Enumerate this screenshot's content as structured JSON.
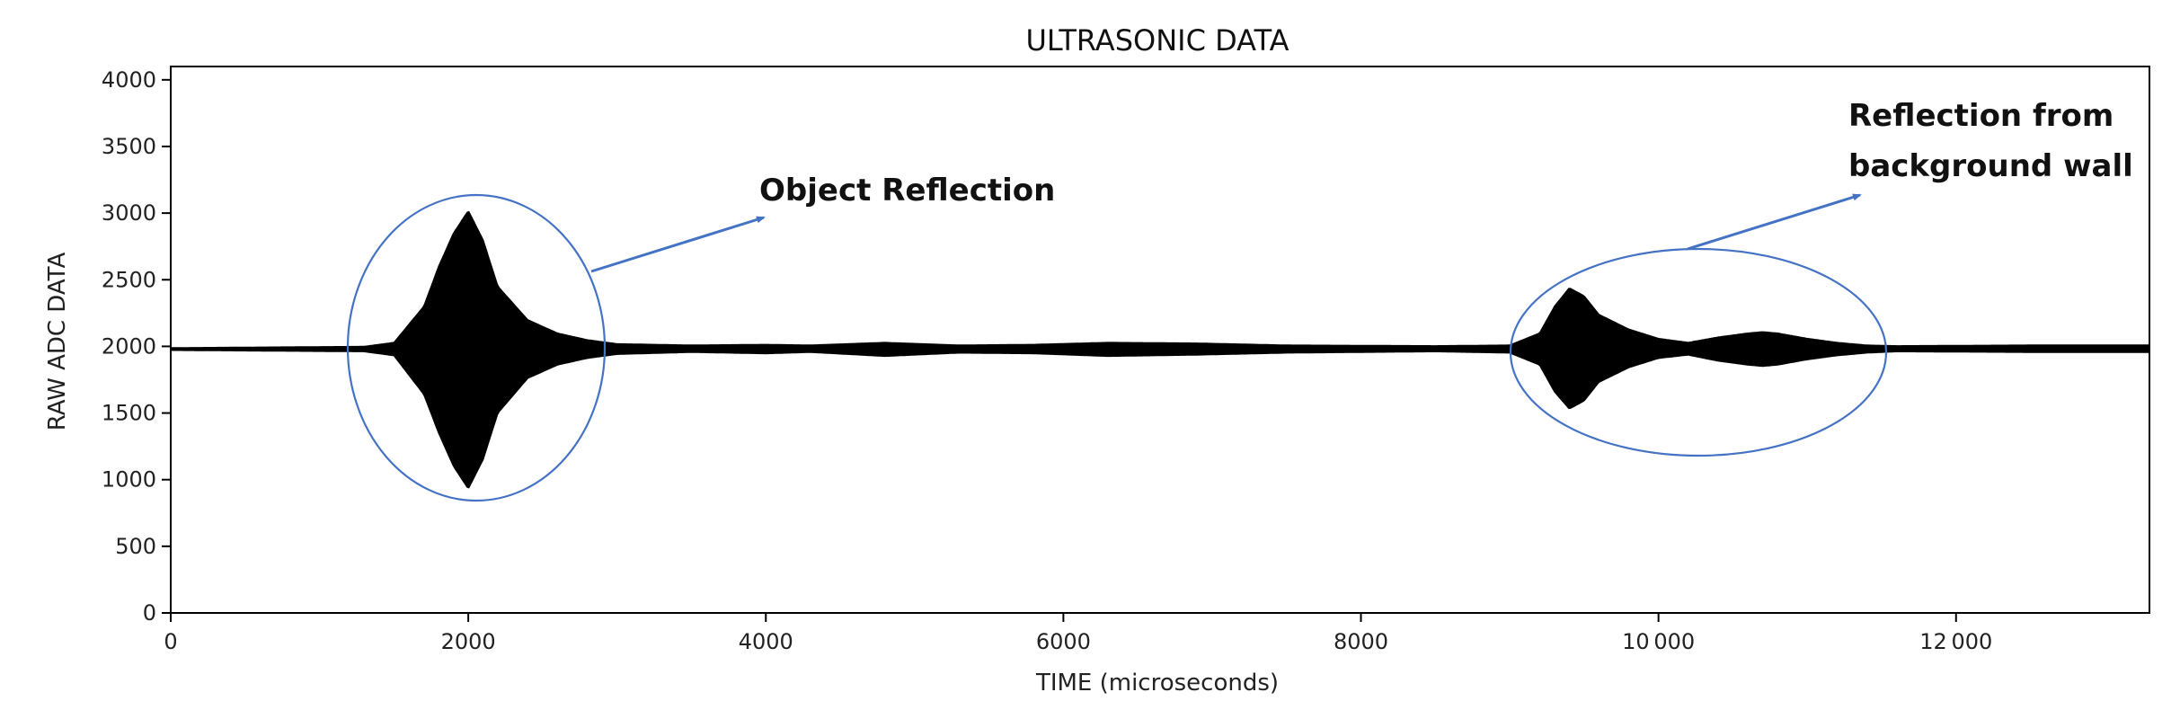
{
  "colors": {
    "signal": "#000000",
    "annotation": "#4472C4",
    "axis": "#000000"
  },
  "chart_data": {
    "type": "line",
    "title": "ULTRASONIC DATA",
    "xlabel": "TIME (microseconds)",
    "ylabel": "RAW ADC DATA",
    "xlim": [
      0,
      13300
    ],
    "ylim": [
      0,
      4100
    ],
    "x_ticks": [
      0,
      2000,
      4000,
      6000,
      8000,
      10000,
      12000
    ],
    "x_tick_labels": [
      "0",
      "2000",
      "4000",
      "6000",
      "8000",
      "10 000",
      "12 000"
    ],
    "y_ticks": [
      0,
      500,
      1000,
      1500,
      2000,
      2500,
      3000,
      3500,
      4000
    ],
    "y_tick_labels": [
      "0",
      "500",
      "1000",
      "1500",
      "2000",
      "2500",
      "3000",
      "3500",
      "4000"
    ],
    "grid": false,
    "series": [
      {
        "baseline": 1980,
        "envelope_x": [
          0,
          1300,
          1500,
          1700,
          1800,
          1900,
          2000,
          2100,
          2200,
          2400,
          2600,
          2800,
          3000,
          3500,
          4000,
          4300,
          4800,
          5300,
          5800,
          6300,
          6900,
          7500,
          8500,
          9000,
          9200,
          9300,
          9400,
          9500,
          9600,
          9800,
          10000,
          10200,
          10400,
          10600,
          10700,
          10800,
          11000,
          11200,
          11400,
          11600,
          12500,
          13300
        ],
        "envelope_upper": [
          1990,
          2000,
          2030,
          2300,
          2600,
          2850,
          3020,
          2800,
          2450,
          2200,
          2100,
          2050,
          2020,
          2010,
          2015,
          2010,
          2030,
          2010,
          2015,
          2030,
          2025,
          2010,
          2005,
          2010,
          2100,
          2300,
          2440,
          2380,
          2240,
          2130,
          2060,
          2030,
          2070,
          2100,
          2110,
          2100,
          2060,
          2030,
          2010,
          2005,
          2010,
          2010
        ],
        "envelope_lower": [
          1970,
          1960,
          1930,
          1640,
          1350,
          1100,
          930,
          1150,
          1500,
          1760,
          1860,
          1910,
          1940,
          1955,
          1945,
          1955,
          1925,
          1950,
          1945,
          1925,
          1935,
          1950,
          1960,
          1950,
          1860,
          1660,
          1530,
          1590,
          1730,
          1840,
          1910,
          1935,
          1890,
          1860,
          1850,
          1860,
          1900,
          1930,
          1950,
          1960,
          1955,
          1955
        ]
      }
    ],
    "annotations": [
      {
        "text": "Object Reflection"
      },
      {
        "text": "Reflection from background wall",
        "lines": [
          "Reflection from",
          "background wall"
        ]
      }
    ]
  }
}
